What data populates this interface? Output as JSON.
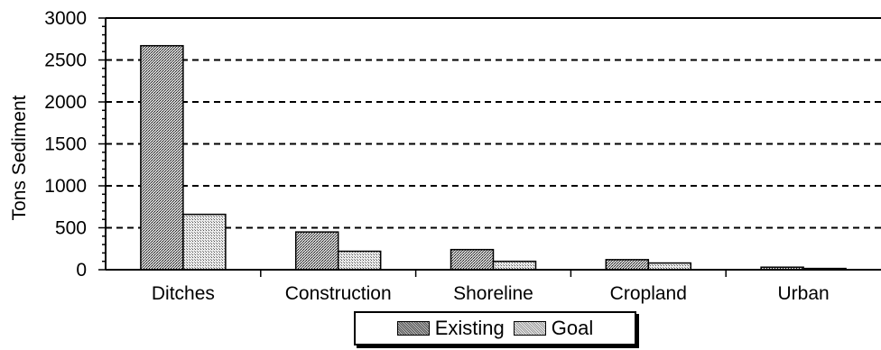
{
  "chart_data": {
    "type": "bar",
    "categories": [
      "Ditches",
      "Construction",
      "Shoreline",
      "Cropland",
      "Urban"
    ],
    "series": [
      {
        "name": "Existing",
        "values": [
          2670,
          450,
          240,
          120,
          30
        ],
        "color": "#8c8c8c"
      },
      {
        "name": "Goal",
        "values": [
          660,
          220,
          100,
          80,
          15
        ],
        "color": "#c8c8c8"
      }
    ],
    "ylabel": "Tons Sediment",
    "ylim": [
      0,
      3000
    ],
    "yticks": [
      0,
      500,
      1000,
      1500,
      2000,
      2500,
      3000
    ],
    "grid": true,
    "legend_position": "bottom"
  }
}
